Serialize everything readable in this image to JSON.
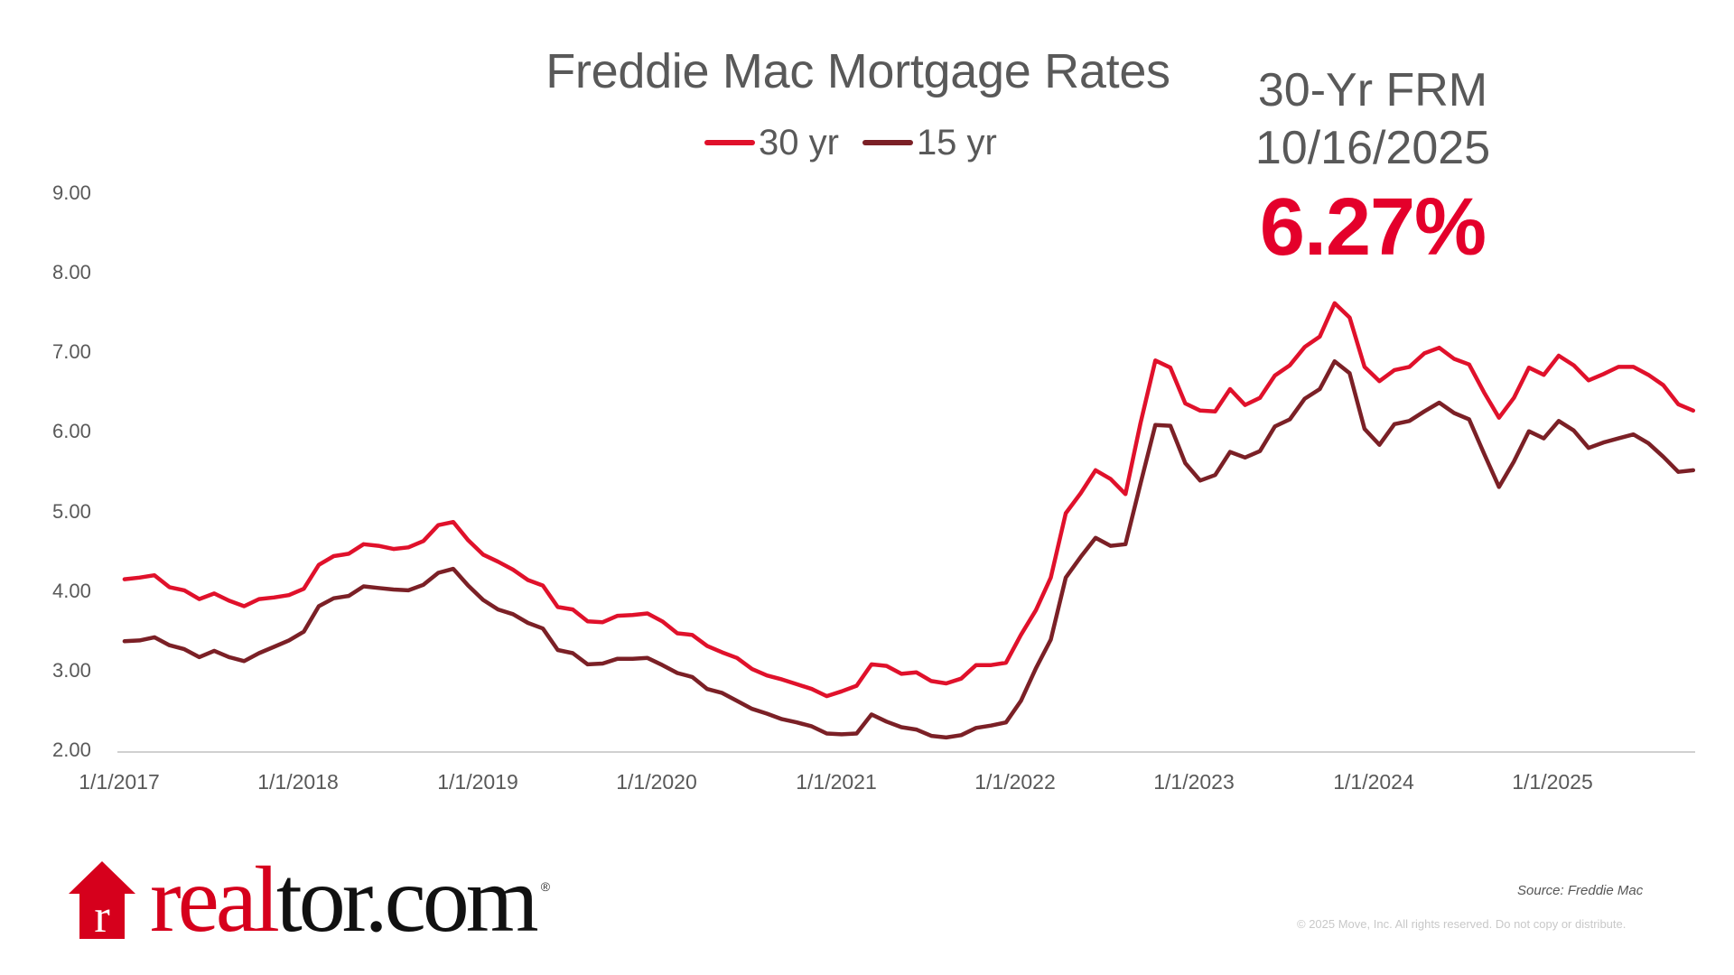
{
  "header": {
    "title": "Freddie Mac Mortgage Rates",
    "legend": [
      {
        "label": "30 yr",
        "color": "#E0112B"
      },
      {
        "label": "15 yr",
        "color": "#7B2026"
      }
    ]
  },
  "callout": {
    "label_line1": "30-Yr FRM",
    "label_line2": "10/16/2025",
    "value": "6.27%",
    "value_color": "#E4002B"
  },
  "footer": {
    "logo_red": "real",
    "logo_black": "tor.com",
    "logo_mark": "®",
    "source": "Source: Freddie Mac",
    "copyright": "© 2025 Move, Inc. All rights reserved. Do not copy or distribute."
  },
  "chart_data": {
    "type": "line",
    "title": "Freddie Mac Mortgage Rates",
    "xlabel": "",
    "ylabel": "",
    "ylim": [
      2.0,
      9.0
    ],
    "y_ticks": [
      "9.00",
      "8.00",
      "7.00",
      "6.00",
      "5.00",
      "4.00",
      "3.00",
      "2.00"
    ],
    "x_ticks": [
      "1/1/2017",
      "1/1/2018",
      "1/1/2019",
      "1/1/2020",
      "1/1/2021",
      "1/1/2022",
      "1/1/2023",
      "1/1/2024",
      "1/1/2025"
    ],
    "grid": false,
    "legend_position": "top",
    "x": [
      "2017-01",
      "2017-02",
      "2017-03",
      "2017-04",
      "2017-05",
      "2017-06",
      "2017-07",
      "2017-08",
      "2017-09",
      "2017-10",
      "2017-11",
      "2017-12",
      "2018-01",
      "2018-02",
      "2018-03",
      "2018-04",
      "2018-05",
      "2018-06",
      "2018-07",
      "2018-08",
      "2018-09",
      "2018-10",
      "2018-11",
      "2018-12",
      "2019-01",
      "2019-02",
      "2019-03",
      "2019-04",
      "2019-05",
      "2019-06",
      "2019-07",
      "2019-08",
      "2019-09",
      "2019-10",
      "2019-11",
      "2019-12",
      "2020-01",
      "2020-02",
      "2020-03",
      "2020-04",
      "2020-05",
      "2020-06",
      "2020-07",
      "2020-08",
      "2020-09",
      "2020-10",
      "2020-11",
      "2020-12",
      "2021-01",
      "2021-02",
      "2021-03",
      "2021-04",
      "2021-05",
      "2021-06",
      "2021-07",
      "2021-08",
      "2021-09",
      "2021-10",
      "2021-11",
      "2021-12",
      "2022-01",
      "2022-02",
      "2022-03",
      "2022-04",
      "2022-05",
      "2022-06",
      "2022-07",
      "2022-08",
      "2022-09",
      "2022-10",
      "2022-11",
      "2022-12",
      "2023-01",
      "2023-02",
      "2023-03",
      "2023-04",
      "2023-05",
      "2023-06",
      "2023-07",
      "2023-08",
      "2023-09",
      "2023-10",
      "2023-11",
      "2023-12",
      "2024-01",
      "2024-02",
      "2024-03",
      "2024-04",
      "2024-05",
      "2024-06",
      "2024-07",
      "2024-08",
      "2024-09",
      "2024-10",
      "2024-11",
      "2024-12",
      "2025-01",
      "2025-02",
      "2025-03",
      "2025-04",
      "2025-05",
      "2025-06",
      "2025-07",
      "2025-08",
      "2025-09",
      "2025-10"
    ],
    "series": [
      {
        "name": "30 yr",
        "color": "#E0112B",
        "values": [
          4.15,
          4.17,
          4.2,
          4.05,
          4.01,
          3.9,
          3.97,
          3.88,
          3.81,
          3.9,
          3.92,
          3.95,
          4.03,
          4.33,
          4.44,
          4.47,
          4.59,
          4.57,
          4.53,
          4.55,
          4.63,
          4.83,
          4.87,
          4.64,
          4.46,
          4.37,
          4.27,
          4.14,
          4.07,
          3.8,
          3.77,
          3.62,
          3.61,
          3.69,
          3.7,
          3.72,
          3.62,
          3.47,
          3.45,
          3.31,
          3.23,
          3.16,
          3.02,
          2.94,
          2.89,
          2.83,
          2.77,
          2.68,
          2.74,
          2.81,
          3.08,
          3.06,
          2.96,
          2.98,
          2.87,
          2.84,
          2.9,
          3.07,
          3.07,
          3.1,
          3.45,
          3.76,
          4.17,
          4.98,
          5.23,
          5.52,
          5.41,
          5.22,
          6.11,
          6.9,
          6.81,
          6.36,
          6.27,
          6.26,
          6.54,
          6.34,
          6.43,
          6.71,
          6.84,
          7.07,
          7.2,
          7.62,
          7.44,
          6.82,
          6.64,
          6.78,
          6.82,
          6.99,
          7.06,
          6.92,
          6.85,
          6.5,
          6.18,
          6.43,
          6.81,
          6.72,
          6.96,
          6.84,
          6.65,
          6.73,
          6.82,
          6.82,
          6.72,
          6.59,
          6.35,
          6.27
        ]
      },
      {
        "name": "15 yr",
        "color": "#7B2026",
        "values": [
          3.37,
          3.38,
          3.42,
          3.32,
          3.27,
          3.17,
          3.25,
          3.17,
          3.12,
          3.22,
          3.3,
          3.38,
          3.49,
          3.81,
          3.91,
          3.94,
          4.06,
          4.04,
          4.02,
          4.01,
          4.08,
          4.23,
          4.28,
          4.07,
          3.89,
          3.77,
          3.71,
          3.6,
          3.53,
          3.26,
          3.22,
          3.08,
          3.09,
          3.15,
          3.15,
          3.16,
          3.07,
          2.97,
          2.92,
          2.77,
          2.72,
          2.62,
          2.52,
          2.46,
          2.39,
          2.35,
          2.3,
          2.21,
          2.2,
          2.21,
          2.45,
          2.36,
          2.29,
          2.26,
          2.18,
          2.16,
          2.19,
          2.28,
          2.31,
          2.35,
          2.62,
          3.03,
          3.39,
          4.17,
          4.43,
          4.67,
          4.57,
          4.59,
          5.35,
          6.09,
          6.08,
          5.61,
          5.39,
          5.46,
          5.75,
          5.68,
          5.76,
          6.07,
          6.16,
          6.42,
          6.54,
          6.89,
          6.74,
          6.04,
          5.84,
          6.1,
          6.14,
          6.26,
          6.37,
          6.24,
          6.16,
          5.73,
          5.31,
          5.63,
          6.01,
          5.92,
          6.14,
          6.02,
          5.8,
          5.87,
          5.92,
          5.97,
          5.86,
          5.69,
          5.5,
          5.52
        ]
      }
    ]
  }
}
